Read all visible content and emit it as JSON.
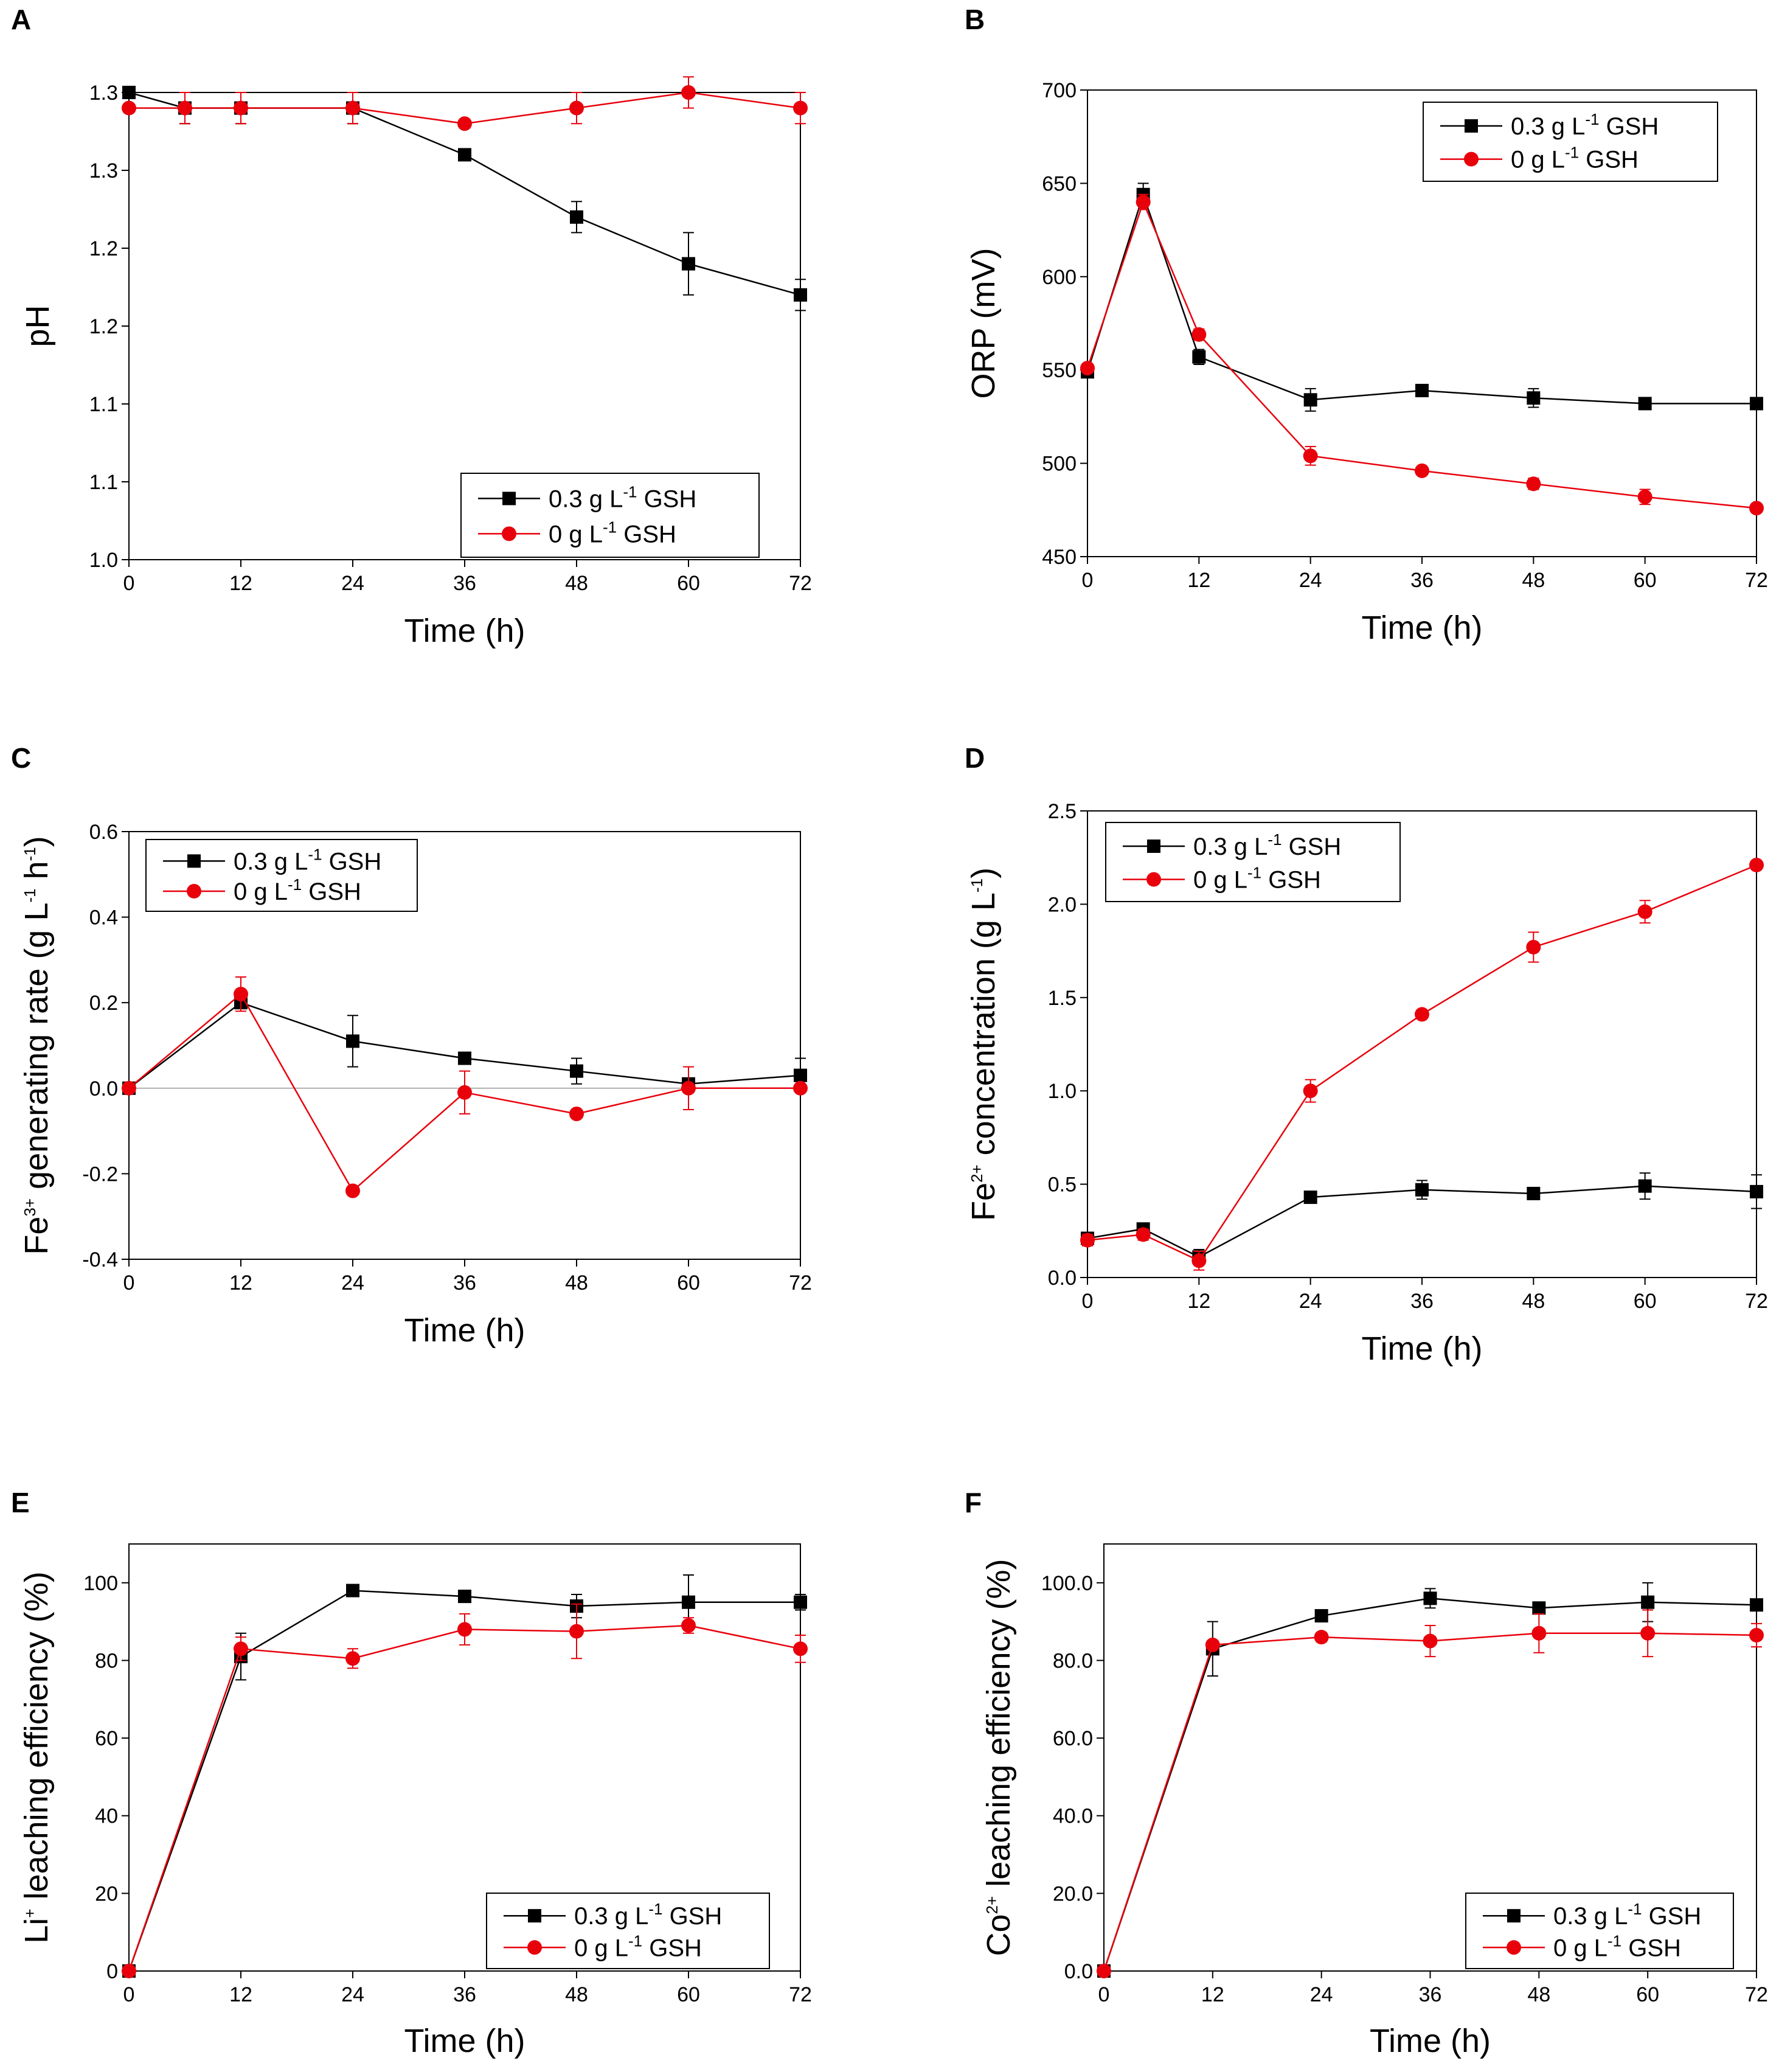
{
  "figure": {
    "background": "#ffffff",
    "series_colors": {
      "treated": "#000000",
      "control": "#e8000b"
    }
  },
  "chart_data": [
    {
      "panel": "A",
      "type": "line",
      "title": "",
      "xlabel": "Time (h)",
      "ylabel": "pH",
      "xlim": [
        0,
        72
      ],
      "ylim": [
        1.0,
        1.3
      ],
      "xticks": [
        0,
        12,
        24,
        36,
        48,
        60,
        72
      ],
      "yticks": [
        1.0,
        1.05,
        1.1,
        1.15,
        1.2,
        1.25,
        1.3
      ],
      "yticklabels": [
        "1.0",
        "1.1",
        "1.1",
        "1.2",
        "1.2",
        "1.3",
        "1.3"
      ],
      "legend_position": "bottom-right",
      "series": [
        {
          "name": "0.3 g L-1 GSH",
          "label_main": "0.3 g L",
          "label_sup": "-1",
          "label_tail": " GSH",
          "marker": "square",
          "color": "#000000",
          "x": [
            0,
            6,
            12,
            24,
            36,
            48,
            60,
            72
          ],
          "y": [
            1.3,
            1.29,
            1.29,
            1.29,
            1.26,
            1.22,
            1.19,
            1.17
          ],
          "err": [
            0,
            0.01,
            0.01,
            0.01,
            0,
            0.01,
            0.02,
            0.01
          ]
        },
        {
          "name": "0 g L-1 GSH",
          "label_main": "0 g L",
          "label_sup": "-1",
          "label_tail": " GSH",
          "marker": "circle",
          "color": "#e8000b",
          "x": [
            0,
            6,
            12,
            24,
            36,
            48,
            60,
            72
          ],
          "y": [
            1.29,
            1.29,
            1.29,
            1.29,
            1.28,
            1.29,
            1.3,
            1.29
          ],
          "err": [
            0,
            0.01,
            0.01,
            0.01,
            0,
            0.01,
            0.01,
            0.01
          ]
        }
      ]
    },
    {
      "panel": "B",
      "type": "line",
      "title": "",
      "xlabel": "Time (h)",
      "ylabel": "ORP (mV)",
      "xlim": [
        0,
        72
      ],
      "ylim": [
        450,
        700
      ],
      "xticks": [
        0,
        12,
        24,
        36,
        48,
        60,
        72
      ],
      "yticks": [
        450,
        500,
        550,
        600,
        650,
        700
      ],
      "yticklabels": [
        "450",
        "500",
        "550",
        "600",
        "650",
        "700"
      ],
      "legend_position": "top-right",
      "series": [
        {
          "name": "0.3 g L-1 GSH",
          "label_main": "0.3 g L",
          "label_sup": "-1",
          "label_tail": " GSH",
          "marker": "square",
          "color": "#000000",
          "x": [
            0,
            6,
            12,
            24,
            36,
            48,
            60,
            72
          ],
          "y": [
            549,
            644,
            557,
            534,
            539,
            535,
            532,
            532
          ],
          "err": [
            0,
            6,
            4,
            6,
            3,
            5,
            3,
            2
          ]
        },
        {
          "name": "0 g L-1 GSH",
          "label_main": "0 g L",
          "label_sup": "-1",
          "label_tail": " GSH",
          "marker": "circle",
          "color": "#e8000b",
          "x": [
            0,
            6,
            12,
            24,
            36,
            48,
            60,
            72
          ],
          "y": [
            551,
            640,
            569,
            504,
            496,
            489,
            482,
            476
          ],
          "err": [
            0,
            4,
            3,
            5,
            2,
            3,
            4,
            2
          ]
        }
      ]
    },
    {
      "panel": "C",
      "type": "line",
      "title": "",
      "xlabel": "Time (h)",
      "ylabel": "Fe3+ generating rate (g L-1 h-1)",
      "ylabel_parts": [
        "Fe",
        "3+",
        " generating rate (g L",
        "-1",
        " h",
        "-1",
        ")"
      ],
      "xlim": [
        0,
        72
      ],
      "ylim": [
        -0.4,
        0.6
      ],
      "xticks": [
        0,
        12,
        24,
        36,
        48,
        60,
        72
      ],
      "yticks": [
        -0.4,
        -0.2,
        0.0,
        0.2,
        0.4,
        0.6
      ],
      "yticklabels": [
        "-0.4",
        "-0.2",
        "0.0",
        "0.2",
        "0.4",
        "0.6"
      ],
      "zero_line": true,
      "legend_position": "top-left",
      "series": [
        {
          "name": "0.3 g L-1 GSH",
          "label_main": "0.3 g L",
          "label_sup": "-1",
          "label_tail": " GSH",
          "marker": "square",
          "color": "#000000",
          "x": [
            0,
            12,
            24,
            36,
            48,
            60,
            72
          ],
          "y": [
            0.0,
            0.2,
            0.11,
            0.07,
            0.04,
            0.01,
            0.03
          ],
          "err": [
            0,
            0.01,
            0.06,
            0,
            0.03,
            0,
            0.04
          ]
        },
        {
          "name": "0 g L-1 GSH",
          "label_main": "0 g L",
          "label_sup": "-1",
          "label_tail": " GSH",
          "marker": "circle",
          "color": "#e8000b",
          "x": [
            0,
            12,
            24,
            36,
            48,
            60,
            72
          ],
          "y": [
            0.0,
            0.22,
            -0.24,
            -0.01,
            -0.06,
            0.0,
            0.0
          ],
          "err": [
            0,
            0.04,
            0,
            0.05,
            0,
            0.05,
            0
          ]
        }
      ]
    },
    {
      "panel": "D",
      "type": "line",
      "title": "",
      "xlabel": "Time (h)",
      "ylabel": "Fe2+ concentration (g L-1)",
      "ylabel_parts": [
        "Fe",
        "2+",
        " concentration (g L",
        "-1",
        ")"
      ],
      "xlim": [
        0,
        72
      ],
      "ylim": [
        0.0,
        2.5
      ],
      "xticks": [
        0,
        12,
        24,
        36,
        48,
        60,
        72
      ],
      "yticks": [
        0.0,
        0.5,
        1.0,
        1.5,
        2.0,
        2.5
      ],
      "yticklabels": [
        "0.0",
        "0.5",
        "1.0",
        "1.5",
        "2.0",
        "2.5"
      ],
      "legend_position": "top-left",
      "series": [
        {
          "name": "0.3 g L-1 GSH",
          "label_main": "0.3 g L",
          "label_sup": "-1",
          "label_tail": " GSH",
          "marker": "square",
          "color": "#000000",
          "x": [
            0,
            6,
            12,
            24,
            36,
            48,
            60,
            72
          ],
          "y": [
            0.21,
            0.26,
            0.11,
            0.43,
            0.47,
            0.45,
            0.49,
            0.46
          ],
          "err": [
            0.03,
            0.03,
            0.04,
            0.03,
            0.05,
            0.02,
            0.07,
            0.09
          ]
        },
        {
          "name": "0 g L-1 GSH",
          "label_main": "0 g L",
          "label_sup": "-1",
          "label_tail": " GSH",
          "marker": "circle",
          "color": "#e8000b",
          "x": [
            0,
            6,
            12,
            24,
            36,
            48,
            60,
            72
          ],
          "y": [
            0.2,
            0.23,
            0.09,
            1.0,
            1.41,
            1.77,
            1.96,
            2.21
          ],
          "err": [
            0.03,
            0.03,
            0.05,
            0.06,
            0.02,
            0.08,
            0.06,
            0.02
          ]
        }
      ]
    },
    {
      "panel": "E",
      "type": "line",
      "title": "",
      "xlabel": "Time (h)",
      "ylabel": "Li+ leaching efficiency (%)",
      "ylabel_parts": [
        "Li",
        "+",
        " leaching efficiency (%)"
      ],
      "xlim": [
        0,
        72
      ],
      "ylim": [
        0,
        110
      ],
      "xticks": [
        0,
        12,
        24,
        36,
        48,
        60,
        72
      ],
      "yticks": [
        0,
        20,
        40,
        60,
        80,
        100
      ],
      "yticklabels": [
        "0",
        "20",
        "40",
        "60",
        "80",
        "100"
      ],
      "legend_position": "bottom-right",
      "series": [
        {
          "name": "0.3 g L-1 GSH",
          "label_main": "0.3 g L",
          "label_sup": "-1",
          "label_tail": " GSH",
          "marker": "square",
          "color": "#000000",
          "x": [
            0,
            12,
            24,
            36,
            48,
            60,
            72
          ],
          "y": [
            0,
            81,
            98,
            96.5,
            94,
            95,
            95
          ],
          "err": [
            0,
            6,
            1.5,
            0.8,
            3,
            7,
            2
          ]
        },
        {
          "name": "0 g L-1 GSH",
          "label_main": "0 g L",
          "label_sup": "-1",
          "label_tail": " GSH",
          "marker": "circle",
          "color": "#e8000b",
          "x": [
            0,
            12,
            24,
            36,
            48,
            60,
            72
          ],
          "y": [
            0,
            83,
            80.5,
            88,
            87.5,
            89,
            83
          ],
          "err": [
            0,
            3,
            2.5,
            4,
            7,
            2,
            3.5
          ]
        }
      ]
    },
    {
      "panel": "F",
      "type": "line",
      "title": "",
      "xlabel": "Time (h)",
      "ylabel": "Co2+ leaching efficiency (%)",
      "ylabel_parts": [
        "Co",
        "2+",
        " leaching efficiency (%)"
      ],
      "xlim": [
        0,
        72
      ],
      "ylim": [
        0,
        110
      ],
      "xticks": [
        0,
        12,
        24,
        36,
        48,
        60,
        72
      ],
      "yticks": [
        0,
        20,
        40,
        60,
        80,
        100
      ],
      "yticklabels": [
        "0.0",
        "20.0",
        "40.0",
        "60.0",
        "80.0",
        "100.0"
      ],
      "legend_position": "bottom-right",
      "series": [
        {
          "name": "0.3 g L-1 GSH",
          "label_main": "0.3 g L",
          "label_sup": "-1",
          "label_tail": " GSH",
          "marker": "square",
          "color": "#000000",
          "x": [
            0,
            12,
            24,
            36,
            48,
            60,
            72
          ],
          "y": [
            0,
            83,
            91.5,
            96,
            93.5,
            95,
            94.3
          ],
          "err": [
            0,
            7,
            1.5,
            2.5,
            1,
            5,
            1
          ]
        },
        {
          "name": "0 g L-1 GSH",
          "label_main": "0 g L",
          "label_sup": "-1",
          "label_tail": " GSH",
          "marker": "circle",
          "color": "#e8000b",
          "x": [
            0,
            12,
            24,
            36,
            48,
            60,
            72
          ],
          "y": [
            0,
            84,
            86,
            85,
            87,
            87,
            86.5
          ],
          "err": [
            0,
            0.8,
            1.2,
            4,
            5,
            6,
            3
          ]
        }
      ]
    }
  ]
}
